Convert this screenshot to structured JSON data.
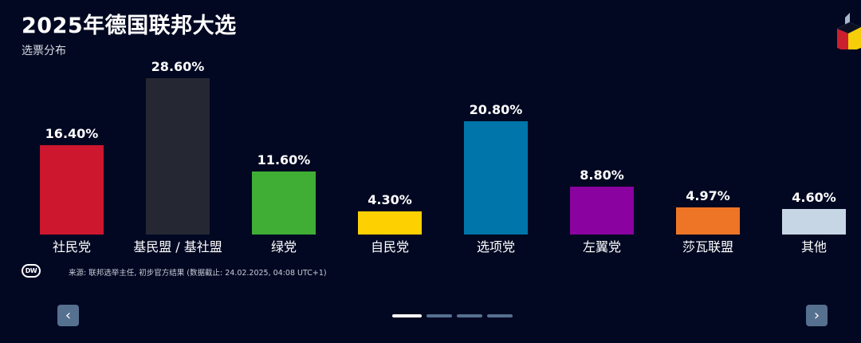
{
  "header": {
    "title": "2025年德国联邦大选",
    "subtitle": "选票分布"
  },
  "footer": {
    "source": "来源: 联邦选举主任, 初步官方结果 (数据截止: 24.02.2025, 04:08 UTC+1)",
    "logo_text": "DW"
  },
  "nav": {
    "prev": "‹",
    "next": "›",
    "pages": 4,
    "active_page": 1
  },
  "chart_data": {
    "type": "bar",
    "title": "2025年德国联邦大选",
    "subtitle": "选票分布",
    "xlabel": "",
    "ylabel": "",
    "ylim": [
      0,
      30
    ],
    "grid": false,
    "categories": [
      "社民党",
      "基民盟 / 基社盟",
      "绿党",
      "自民党",
      "选项党",
      "左翼党",
      "莎瓦联盟",
      "其他"
    ],
    "values": [
      16.4,
      28.6,
      11.6,
      4.3,
      20.8,
      8.8,
      4.97,
      4.6
    ],
    "value_labels": [
      "16.40%",
      "28.60%",
      "11.60%",
      "4.30%",
      "20.80%",
      "8.80%",
      "4.97%",
      "4.60%"
    ],
    "colors": [
      "#cc172e",
      "#252833",
      "#40ae35",
      "#fdd001",
      "#0075aa",
      "#8a02a0",
      "#ef7526",
      "#c7d6e4"
    ]
  }
}
